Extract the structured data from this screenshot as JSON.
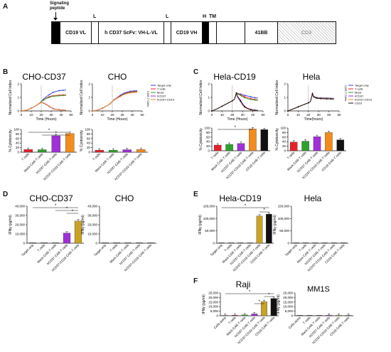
{
  "panels": {
    "A": "A",
    "B": "B",
    "C": "C",
    "D": "D",
    "E": "E",
    "F": "F"
  },
  "construct": {
    "signal_label_1": "Signaling",
    "signal_label_2": "peptide",
    "segments": [
      {
        "key": "cd19vl",
        "label": "CD19 VL"
      },
      {
        "key": "l1",
        "label": "L"
      },
      {
        "key": "hcd37",
        "label": "h CD37 ScFv: VH-L-VL"
      },
      {
        "key": "l2",
        "label": "L"
      },
      {
        "key": "cd19vh",
        "label": "CD19 VH"
      },
      {
        "key": "h",
        "label": "H"
      },
      {
        "key": "tm",
        "label": "TM"
      },
      {
        "key": "41bb",
        "label": "41BB"
      },
      {
        "key": "cd3",
        "label": "CD3"
      }
    ]
  },
  "colors": {
    "target": "#2b3bd6",
    "tcells": "#e8202a",
    "mock": "#2ea12e",
    "hcd37": "#a030d8",
    "hcd37cd19": "#f28c1c",
    "cd19": "#111111",
    "gold": "#c9a227"
  },
  "common": {
    "rtca_y": "Normalized Cell Index",
    "rtca_x": "Time (Hours)",
    "rtca_x_hela": "Time(hours)",
    "cyto_y": "% Cytotoxicity",
    "cyto_y_alt": "% Cyotoxicity",
    "ifn_y": "IFNγ (pg/ml)",
    "star": "*",
    "car_t_cells": "CAR-T Cells"
  },
  "legends": {
    "B": [
      "Target only",
      "T cells",
      "Mock",
      "hCD37",
      "hCD37-CD19"
    ],
    "C": [
      "Target only",
      "T cells",
      "Mock",
      "hCD37",
      "hCD37-CD19",
      "CD19"
    ]
  },
  "charts": {
    "B1": {
      "title": "CHO-CD37"
    },
    "B2": {
      "title": "CHO"
    },
    "C1": {
      "title": "Hela-CD19"
    },
    "C2": {
      "title": "Hela"
    },
    "D1": {
      "title": "CHO-CD37"
    },
    "D2": {
      "title": "CHO"
    },
    "E1": {
      "title": "Hela-CD19"
    },
    "E2": {
      "title": "Hela"
    },
    "F1": {
      "title": "Raji"
    },
    "F2": {
      "title": "MM1S"
    }
  },
  "chart_data": [
    {
      "id": "B1-line",
      "type": "line",
      "title": "CHO-CD37",
      "xlabel": "Time (Hours)",
      "ylabel": "Normalized Cell Index",
      "xlim": [
        0,
        50
      ],
      "ylim": [
        0,
        2
      ],
      "x": [
        0,
        5,
        10,
        15,
        18,
        20,
        22,
        25,
        28,
        30,
        32,
        35,
        38,
        40,
        42,
        45
      ],
      "series": [
        {
          "name": "Target only",
          "values": [
            0,
            0.05,
            0.2,
            0.4,
            0.55,
            0.7,
            0.85,
            1.05,
            1.2,
            1.3,
            1.38,
            1.45,
            1.5,
            1.52,
            1.53,
            1.55
          ]
        },
        {
          "name": "T cells",
          "values": [
            0,
            0.05,
            0.2,
            0.4,
            0.55,
            0.68,
            0.8,
            0.95,
            1.05,
            1.1,
            1.12,
            1.15,
            1.17,
            1.18,
            1.18,
            1.2
          ]
        },
        {
          "name": "Mock",
          "values": [
            0,
            0.05,
            0.2,
            0.4,
            0.55,
            0.68,
            0.78,
            0.92,
            1.0,
            1.05,
            1.08,
            1.1,
            1.12,
            1.13,
            1.14,
            1.15
          ]
        },
        {
          "name": "hCD37",
          "values": [
            0,
            0.05,
            0.2,
            0.4,
            0.55,
            0.62,
            0.6,
            0.5,
            0.35,
            0.25,
            0.18,
            0.12,
            0.1,
            0.08,
            0.07,
            0.06
          ]
        },
        {
          "name": "hCD37-CD19",
          "values": [
            0,
            0.05,
            0.2,
            0.4,
            0.55,
            0.62,
            0.58,
            0.46,
            0.32,
            0.22,
            0.15,
            0.1,
            0.08,
            0.06,
            0.05,
            0.05
          ]
        }
      ]
    },
    {
      "id": "B2-line",
      "type": "line",
      "title": "CHO",
      "xlabel": "Time (Hours)",
      "ylabel": "Normalized Cell Index",
      "xlim": [
        0,
        50
      ],
      "ylim": [
        0,
        2
      ],
      "x": [
        0,
        5,
        10,
        15,
        18,
        20,
        22,
        25,
        28,
        30,
        32,
        35,
        38,
        40,
        42,
        45
      ],
      "series": [
        {
          "name": "Target only",
          "values": [
            0,
            0.05,
            0.2,
            0.4,
            0.55,
            0.7,
            0.85,
            1.0,
            1.15,
            1.25,
            1.32,
            1.4,
            1.45,
            1.47,
            1.48,
            1.5
          ]
        },
        {
          "name": "T cells",
          "values": [
            0,
            0.05,
            0.2,
            0.4,
            0.55,
            0.7,
            0.83,
            0.98,
            1.1,
            1.2,
            1.27,
            1.35,
            1.4,
            1.42,
            1.43,
            1.45
          ]
        },
        {
          "name": "Mock",
          "values": [
            0,
            0.05,
            0.2,
            0.4,
            0.55,
            0.7,
            0.82,
            0.96,
            1.08,
            1.18,
            1.25,
            1.32,
            1.37,
            1.39,
            1.4,
            1.42
          ]
        },
        {
          "name": "hCD37",
          "values": [
            0,
            0.05,
            0.2,
            0.4,
            0.55,
            0.7,
            0.82,
            0.95,
            1.07,
            1.16,
            1.23,
            1.3,
            1.35,
            1.37,
            1.38,
            1.4
          ]
        },
        {
          "name": "hCD37-CD19",
          "values": [
            0,
            0.05,
            0.2,
            0.4,
            0.55,
            0.7,
            0.82,
            0.95,
            1.06,
            1.15,
            1.22,
            1.29,
            1.34,
            1.36,
            1.37,
            1.39
          ]
        }
      ]
    },
    {
      "id": "C1-line",
      "type": "line",
      "title": "Hela-CD19",
      "xlabel": "Time (Hours)",
      "ylabel": "Normalized Cell Index",
      "xlim": [
        0,
        50
      ],
      "ylim": [
        0,
        2
      ],
      "x": [
        0,
        5,
        10,
        15,
        20,
        22,
        24,
        25,
        28,
        30,
        32,
        35,
        38,
        40,
        42,
        45
      ],
      "series": [
        {
          "name": "Target only",
          "values": [
            0,
            0.15,
            0.35,
            0.55,
            0.75,
            0.85,
            1.35,
            1.3,
            1.25,
            1.2,
            1.15,
            1.1,
            1.05,
            1.0,
            0.98,
            0.95
          ]
        },
        {
          "name": "T cells",
          "values": [
            0,
            0.15,
            0.35,
            0.55,
            0.75,
            0.85,
            1.35,
            1.28,
            1.2,
            1.12,
            1.05,
            0.98,
            0.92,
            0.88,
            0.85,
            0.82
          ]
        },
        {
          "name": "Mock",
          "values": [
            0,
            0.15,
            0.35,
            0.55,
            0.75,
            0.85,
            1.35,
            1.25,
            1.15,
            1.05,
            0.98,
            0.9,
            0.85,
            0.82,
            0.8,
            0.78
          ]
        },
        {
          "name": "hCD37",
          "values": [
            0,
            0.15,
            0.35,
            0.55,
            0.75,
            0.85,
            1.3,
            1.1,
            0.8,
            0.55,
            0.35,
            0.2,
            0.12,
            0.08,
            0.06,
            0.05
          ]
        },
        {
          "name": "hCD37-CD19",
          "values": [
            0,
            0.15,
            0.35,
            0.55,
            0.75,
            0.85,
            1.3,
            1.05,
            0.7,
            0.45,
            0.28,
            0.15,
            0.08,
            0.05,
            0.04,
            0.03
          ]
        },
        {
          "name": "CD19",
          "values": [
            0,
            0.15,
            0.35,
            0.55,
            0.75,
            0.85,
            1.3,
            1.05,
            0.72,
            0.48,
            0.3,
            0.17,
            0.1,
            0.06,
            0.05,
            0.04
          ]
        }
      ]
    },
    {
      "id": "C2-line",
      "type": "line",
      "title": "Hela",
      "xlabel": "Time(hours)",
      "ylabel": "Normalized Cell Index",
      "xlim": [
        0,
        50
      ],
      "ylim": [
        0,
        2
      ],
      "x": [
        0,
        5,
        10,
        15,
        20,
        22,
        24,
        25,
        28,
        30,
        32,
        35,
        38,
        40,
        42,
        45
      ],
      "series": [
        {
          "name": "Target only",
          "values": [
            0,
            0.15,
            0.3,
            0.45,
            0.6,
            0.7,
            1.3,
            1.1,
            1.0,
            0.98,
            0.97,
            0.96,
            0.95,
            0.95,
            0.94,
            0.94
          ]
        },
        {
          "name": "T cells",
          "values": [
            0,
            0.15,
            0.3,
            0.45,
            0.6,
            0.7,
            1.3,
            1.08,
            0.98,
            0.96,
            0.95,
            0.94,
            0.93,
            0.93,
            0.92,
            0.92
          ]
        },
        {
          "name": "Mock",
          "values": [
            0,
            0.15,
            0.3,
            0.45,
            0.6,
            0.7,
            1.28,
            1.06,
            0.97,
            0.95,
            0.94,
            0.93,
            0.92,
            0.92,
            0.91,
            0.91
          ]
        },
        {
          "name": "hCD37",
          "values": [
            0,
            0.15,
            0.3,
            0.45,
            0.6,
            0.7,
            1.28,
            1.05,
            0.96,
            0.94,
            0.93,
            0.92,
            0.91,
            0.91,
            0.9,
            0.9
          ]
        },
        {
          "name": "hCD37-CD19",
          "values": [
            0,
            0.15,
            0.3,
            0.45,
            0.6,
            0.7,
            1.27,
            1.04,
            0.95,
            0.93,
            0.92,
            0.91,
            0.9,
            0.9,
            0.89,
            0.89
          ]
        },
        {
          "name": "CD19",
          "values": [
            0,
            0.15,
            0.3,
            0.45,
            0.6,
            0.7,
            1.27,
            1.03,
            0.94,
            0.92,
            0.91,
            0.9,
            0.89,
            0.89,
            0.88,
            0.88
          ]
        }
      ]
    },
    {
      "id": "B1-bar",
      "type": "bar",
      "ylabel": "% Cytotoxicity",
      "ylim": [
        0,
        100
      ],
      "categories": [
        "T cells",
        "Mock CAR-T cells",
        "hCD37 CAR-T cells",
        "hCD37-CD19 CAR-T cells"
      ],
      "values": [
        12,
        11,
        72,
        82
      ]
    },
    {
      "id": "B2-bar",
      "type": "bar",
      "ylabel": "% Cyotoxicity",
      "ylim": [
        0,
        100
      ],
      "categories": [
        "T cells",
        "Mock CAR-T cells",
        "hCD37 CAR-T cells",
        "hCD37-CD19 CAR-T cells"
      ],
      "values": [
        9,
        9,
        11,
        12
      ]
    },
    {
      "id": "C1-bar",
      "type": "bar",
      "ylabel": "% Cytotoxicity",
      "ylim": [
        0,
        100
      ],
      "categories": [
        "T cells",
        "Mock CAR-T cells",
        "hCD37 CAR-T cells",
        "hCD37-CD19 CAR-T cells",
        "CD19 CAR-T cells"
      ],
      "values": [
        25,
        28,
        32,
        96,
        93
      ]
    },
    {
      "id": "C2-bar",
      "type": "bar",
      "ylabel": "% Cytotoxicity",
      "ylim": [
        0,
        100
      ],
      "categories": [
        "T cells",
        "Mock CAR-T cells",
        "hCD37 CAR-T cells",
        "hCD37-CD19 CAR-T cells",
        "CD19 CAR-T cells"
      ],
      "values": [
        38,
        42,
        62,
        80,
        48
      ]
    },
    {
      "id": "D1-bar",
      "type": "bar",
      "ylabel": "IFNγ (pg/ml)",
      "ylim": [
        0,
        40000
      ],
      "categories": [
        "Target only",
        "T cells",
        "Mock CAR-T cells",
        "hCD37 CAR-T cells",
        "hCD37-CD19 CAR-T cells"
      ],
      "values": [
        0,
        0,
        200,
        11000,
        24000
      ]
    },
    {
      "id": "D2-bar",
      "type": "bar",
      "ylabel": "IFNγ (pg/ml)",
      "ylim": [
        0,
        40000
      ],
      "categories": [
        "Target only",
        "T cells",
        "Mock CAR-T cells",
        "hCD37 CAR-T cells",
        "hCD37-CD19 CAR-T cells"
      ],
      "values": [
        0,
        0,
        0,
        0,
        0
      ]
    },
    {
      "id": "E1-bar",
      "type": "bar",
      "ylabel": "IFNγ (pg/ml)",
      "ylim": [
        0,
        150000
      ],
      "categories": [
        "Target only",
        "T cells",
        "Mock CAR-T cells",
        "hCD37 CAR-T cells",
        "hCD37-CD19 CAR-T cells",
        "CD19 CAR-T cells"
      ],
      "values": [
        0,
        0,
        0,
        0,
        110000,
        118000
      ]
    },
    {
      "id": "E2-bar",
      "type": "bar",
      "ylabel": "IFNγ (pg/ml)",
      "ylim": [
        0,
        150000
      ],
      "categories": [
        "Target only",
        "T cells",
        "Mock CAR-T cells",
        "hCD37 CAR-T cells",
        "hCD37-CD19 CAR-T cells",
        "CD19 CAR-T cells"
      ],
      "values": [
        0,
        0,
        0,
        0,
        0,
        0
      ]
    },
    {
      "id": "F1-bar",
      "type": "bar",
      "ylabel": "IFNγ (pg/ml)",
      "ylim": [
        0,
        25000
      ],
      "categories": [
        "Cells alone",
        "T cells",
        "Mock CAR-T cells",
        "hCD37 CAR-T cells",
        "hCD37-CD19 CAR-T cells",
        "CD19 CAR-T cells"
      ],
      "values": [
        400,
        600,
        900,
        2000,
        15500,
        19000
      ]
    },
    {
      "id": "F2-bar",
      "type": "bar",
      "ylabel": "IFNγ (pg/ml)",
      "ylim": [
        0,
        25000
      ],
      "categories": [
        "Cells alone",
        "T cells",
        "Mock CAR-T cells",
        "hCD37 CAR-T cells",
        "hCD37-CD19 CAR-T cells",
        "CD19 CAR-T cells"
      ],
      "values": [
        0,
        0,
        0,
        600,
        500,
        400
      ]
    }
  ]
}
